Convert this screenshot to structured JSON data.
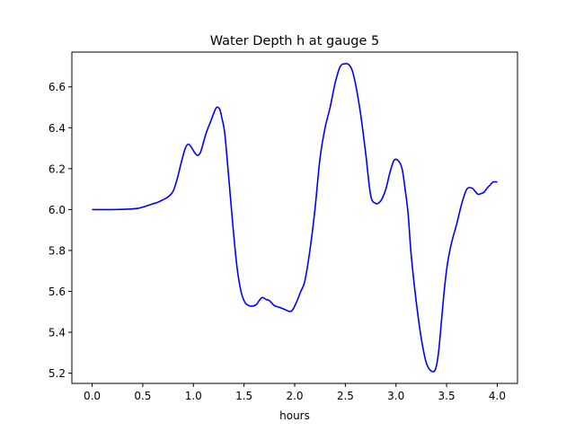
{
  "chart_data": {
    "type": "line",
    "title": "Water Depth h at gauge 5",
    "xlabel": "hours",
    "ylabel": "",
    "xlim": [
      -0.2,
      4.2
    ],
    "ylim": [
      5.15,
      6.77
    ],
    "xticks": [
      0.0,
      0.5,
      1.0,
      1.5,
      2.0,
      2.5,
      3.0,
      3.5,
      4.0
    ],
    "xtick_labels": [
      "0.0",
      "0.5",
      "1.0",
      "1.5",
      "2.0",
      "2.5",
      "3.0",
      "3.5",
      "4.0"
    ],
    "yticks": [
      5.2,
      5.4,
      5.6,
      5.8,
      6.0,
      6.2,
      6.4,
      6.6
    ],
    "ytick_labels": [
      "5.2",
      "5.4",
      "5.6",
      "5.8",
      "6.0",
      "6.2",
      "6.4",
      "6.6"
    ],
    "grid": false,
    "line_color": "#0000ff",
    "series": [
      {
        "x": [
          0.0,
          0.2,
          0.35,
          0.45,
          0.5,
          0.55,
          0.6,
          0.65,
          0.7,
          0.75,
          0.8,
          0.84,
          0.88,
          0.92,
          0.95,
          0.98,
          1.01,
          1.04,
          1.07,
          1.1,
          1.13,
          1.17,
          1.2,
          1.23,
          1.26,
          1.28,
          1.31,
          1.35,
          1.39,
          1.43,
          1.47,
          1.51,
          1.55,
          1.58,
          1.62,
          1.65,
          1.68,
          1.72,
          1.75,
          1.8,
          1.85,
          1.9,
          1.95,
          1.98,
          2.02,
          2.06,
          2.1,
          2.15,
          2.2,
          2.25,
          2.3,
          2.35,
          2.4,
          2.45,
          2.5,
          2.53,
          2.56,
          2.58,
          2.61,
          2.65,
          2.7,
          2.75,
          2.8,
          2.83,
          2.86,
          2.9,
          2.94,
          2.98,
          3.02,
          3.06,
          3.09,
          3.12,
          3.15,
          3.2,
          3.25,
          3.3,
          3.35,
          3.39,
          3.42,
          3.45,
          3.48,
          3.51,
          3.55,
          3.6,
          3.65,
          3.7,
          3.75,
          3.78,
          3.81,
          3.84,
          3.87,
          3.9,
          3.93,
          3.96,
          4.0
        ],
        "y": [
          6.0,
          6.0,
          6.002,
          6.006,
          6.012,
          6.02,
          6.028,
          6.036,
          6.048,
          6.062,
          6.09,
          6.15,
          6.23,
          6.3,
          6.32,
          6.305,
          6.28,
          6.265,
          6.28,
          6.33,
          6.38,
          6.43,
          6.47,
          6.5,
          6.49,
          6.45,
          6.37,
          6.15,
          5.92,
          5.72,
          5.6,
          5.545,
          5.53,
          5.528,
          5.535,
          5.555,
          5.57,
          5.56,
          5.555,
          5.53,
          5.522,
          5.512,
          5.502,
          5.51,
          5.55,
          5.6,
          5.65,
          5.8,
          6.0,
          6.25,
          6.4,
          6.5,
          6.62,
          6.7,
          6.713,
          6.71,
          6.69,
          6.66,
          6.59,
          6.47,
          6.28,
          6.07,
          6.03,
          6.033,
          6.05,
          6.1,
          6.18,
          6.24,
          6.24,
          6.2,
          6.1,
          5.98,
          5.78,
          5.55,
          5.37,
          5.25,
          5.21,
          5.22,
          5.3,
          5.46,
          5.62,
          5.74,
          5.84,
          5.93,
          6.03,
          6.1,
          6.105,
          6.09,
          6.075,
          6.078,
          6.085,
          6.105,
          6.12,
          6.135,
          6.135
        ]
      }
    ]
  }
}
